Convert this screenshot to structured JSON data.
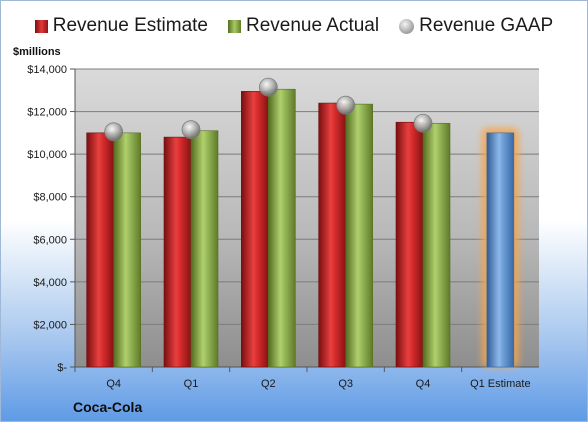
{
  "chart_data": {
    "type": "bar",
    "title": "",
    "unit_label": "$millions",
    "company": "Coca-Cola",
    "categories": [
      "Q4",
      "Q1",
      "Q2",
      "Q3",
      "Q4",
      "Q1 Estimate"
    ],
    "series": [
      {
        "name": "Revenue Estimate",
        "kind": "bar",
        "color": "#d42b2c",
        "values": [
          11000,
          10800,
          12950,
          12400,
          11500,
          null
        ]
      },
      {
        "name": "Revenue Actual",
        "kind": "bar",
        "color": "#92b456",
        "values": [
          11000,
          11100,
          13050,
          12350,
          11450,
          null
        ]
      },
      {
        "name": "Revenue GAAP",
        "kind": "marker",
        "color": "#a9a9a9",
        "values": [
          11050,
          11150,
          13150,
          12300,
          11450,
          null
        ]
      },
      {
        "name": "Q1 Estimate",
        "kind": "bar",
        "color": "#6e9fd8",
        "highlight": "#f7a44a",
        "values": [
          null,
          null,
          null,
          null,
          null,
          11000
        ]
      }
    ],
    "ylim": [
      0,
      14000
    ],
    "yticks": [
      {
        "value": 0,
        "label": "$-"
      },
      {
        "value": 2000,
        "label": "$2,000"
      },
      {
        "value": 4000,
        "label": "$4,000"
      },
      {
        "value": 6000,
        "label": "$6,000"
      },
      {
        "value": 8000,
        "label": "$8,000"
      },
      {
        "value": 10000,
        "label": "$10,000"
      },
      {
        "value": 12000,
        "label": "$12,000"
      },
      {
        "value": 14000,
        "label": "$14,000"
      }
    ],
    "grid": true,
    "legend_position": "top"
  }
}
